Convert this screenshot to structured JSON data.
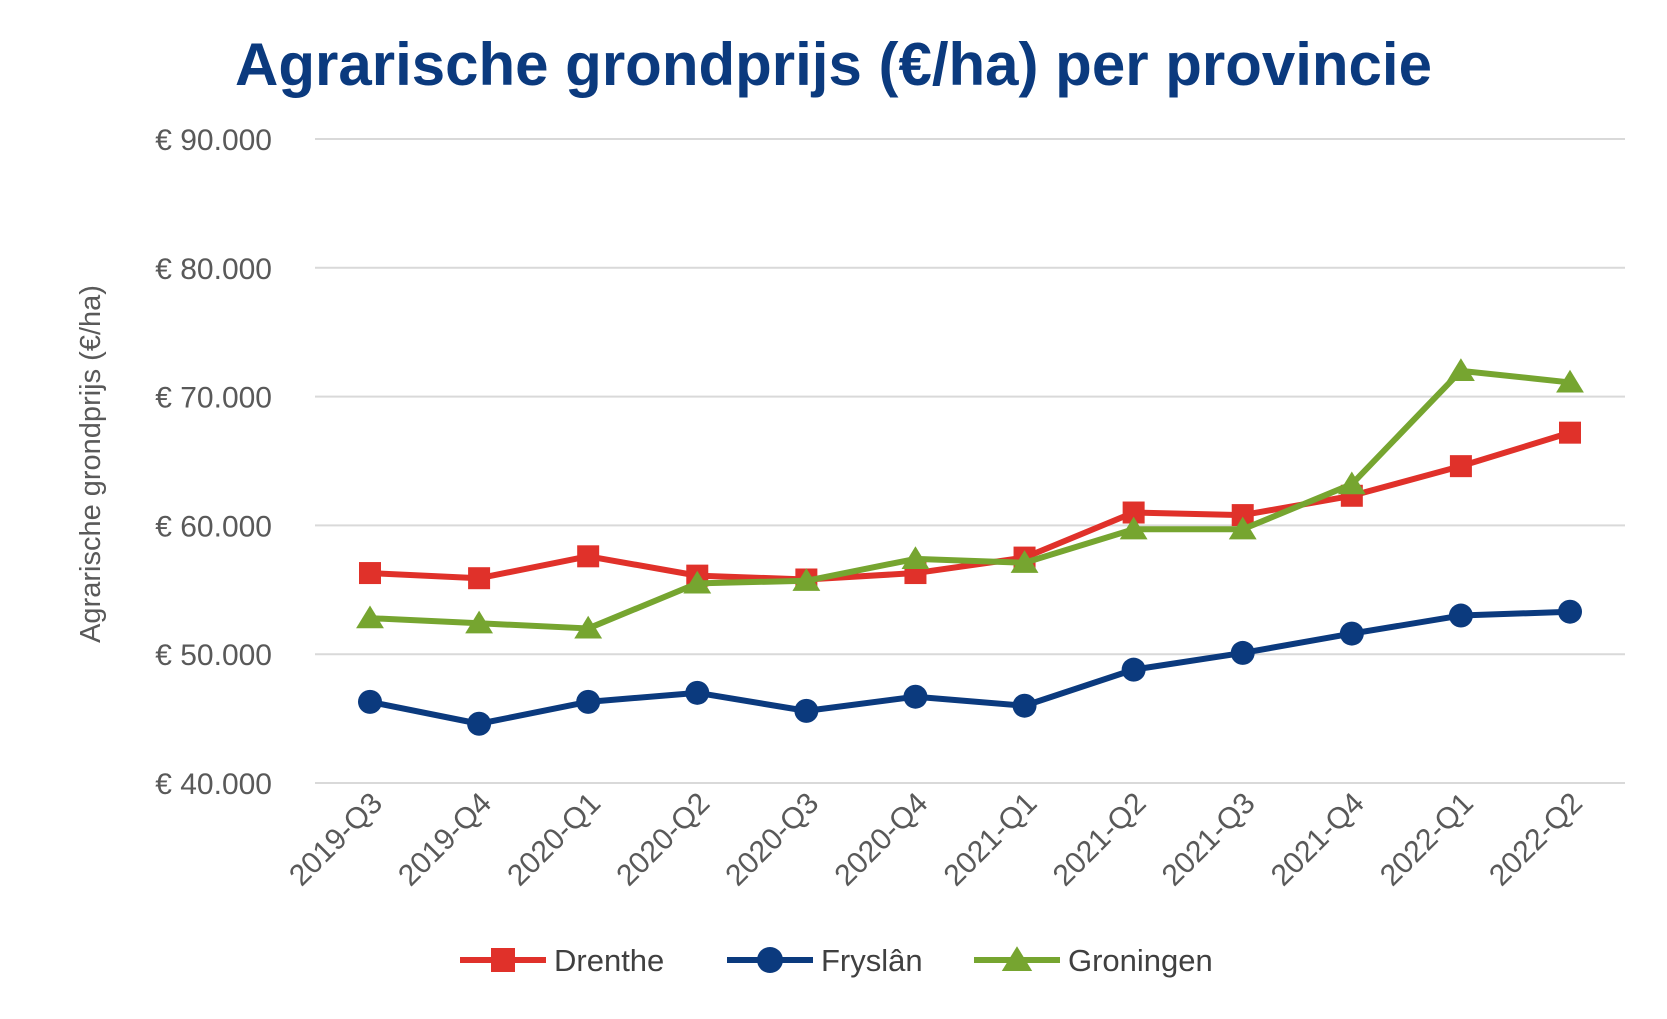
{
  "chart_data": {
    "type": "line",
    "title": "Agrarische grondprijs (€/ha) per provincie",
    "xlabel": "",
    "ylabel": "Agrarische grondprijs (€/ha)",
    "ylim": [
      40000,
      90000
    ],
    "y_ticks": [
      40000,
      50000,
      60000,
      70000,
      80000,
      90000
    ],
    "y_tick_labels": [
      "€ 40.000",
      "€ 50.000",
      "€ 60.000",
      "€ 70.000",
      "€ 80.000",
      "€ 90.000"
    ],
    "grid": true,
    "legend_position": "bottom",
    "categories": [
      "2019-Q3",
      "2019-Q4",
      "2020-Q1",
      "2020-Q2",
      "2020-Q3",
      "2020-Q4",
      "2021-Q1",
      "2021-Q2",
      "2021-Q3",
      "2021-Q4",
      "2022-Q1",
      "2022-Q2"
    ],
    "series": [
      {
        "name": "Drenthe",
        "color": "#e0312a",
        "marker": "square",
        "values": [
          56300,
          55900,
          57600,
          56100,
          55800,
          56300,
          57500,
          61000,
          60800,
          62300,
          64600,
          67200
        ]
      },
      {
        "name": "Fryslân",
        "color": "#0b3a7e",
        "marker": "circle",
        "values": [
          46300,
          44600,
          46300,
          47000,
          45600,
          46700,
          46000,
          48800,
          50100,
          51600,
          53000,
          53300
        ]
      },
      {
        "name": "Groningen",
        "color": "#76a530",
        "marker": "triangle",
        "values": [
          52800,
          52400,
          52000,
          55500,
          55700,
          57400,
          57100,
          59700,
          59700,
          63200,
          72000,
          71100
        ]
      }
    ]
  }
}
